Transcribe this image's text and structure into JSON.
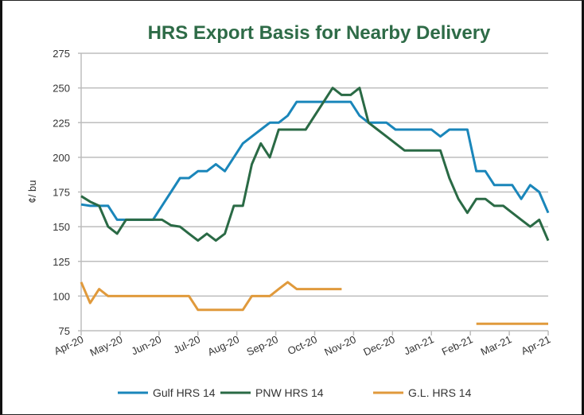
{
  "chart_data": {
    "type": "line",
    "title": "HRS Export Basis for Nearby Delivery",
    "xlabel": "",
    "ylabel": "¢/ bu",
    "ylim": [
      75,
      275
    ],
    "yticks": [
      75,
      100,
      125,
      150,
      175,
      200,
      225,
      250,
      275
    ],
    "xtick_labels": [
      "Apr-20",
      "May-20",
      "Jun-20",
      "Jul-20",
      "Aug-20",
      "Sep-20",
      "Oct-20",
      "Nov-20",
      "Dec-20",
      "Jan-21",
      "Feb-21",
      "Mar-21",
      "Apr-21"
    ],
    "grid": true,
    "legend_position": "bottom",
    "points_per_series": 53,
    "series": [
      {
        "name": "Gulf HRS 14",
        "color": "#1a86ba",
        "values": [
          166,
          165,
          165,
          165,
          155,
          155,
          155,
          155,
          155,
          165,
          175,
          185,
          185,
          190,
          190,
          195,
          190,
          200,
          210,
          215,
          220,
          225,
          225,
          230,
          240,
          240,
          240,
          240,
          240,
          240,
          240,
          230,
          225,
          225,
          225,
          220,
          220,
          220,
          220,
          220,
          215,
          220,
          220,
          220,
          190,
          190,
          180,
          180,
          180,
          170,
          180,
          175,
          160
        ]
      },
      {
        "name": "PNW HRS 14",
        "color": "#2a6a45",
        "values": [
          172,
          168,
          165,
          150,
          145,
          155,
          155,
          155,
          155,
          155,
          151,
          150,
          145,
          140,
          145,
          140,
          145,
          165,
          165,
          195,
          210,
          200,
          220,
          220,
          220,
          220,
          230,
          240,
          250,
          245,
          245,
          250,
          225,
          220,
          215,
          210,
          205,
          205,
          205,
          205,
          205,
          185,
          170,
          160,
          170,
          170,
          165,
          165,
          160,
          155,
          150,
          155,
          140
        ]
      },
      {
        "name": "G.L. HRS 14",
        "color": "#e09a3c",
        "values": [
          110,
          95,
          105,
          100,
          100,
          100,
          100,
          100,
          100,
          100,
          100,
          100,
          100,
          90,
          90,
          90,
          90,
          90,
          90,
          100,
          100,
          100,
          105,
          110,
          105,
          105,
          105,
          105,
          105,
          105,
          null,
          null,
          null,
          null,
          null,
          null,
          null,
          null,
          null,
          null,
          null,
          null,
          null,
          null,
          80,
          80,
          80,
          80,
          80,
          80,
          80,
          80,
          80
        ]
      }
    ]
  }
}
